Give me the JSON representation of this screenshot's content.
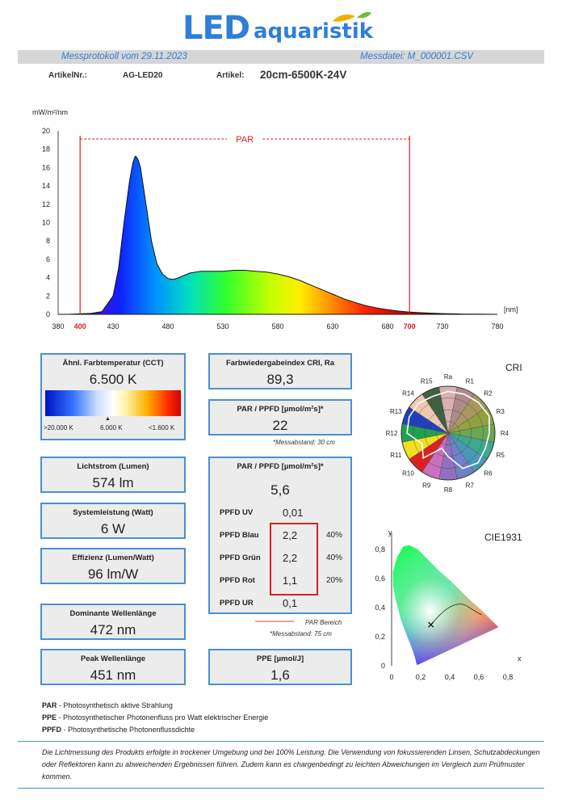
{
  "brand": {
    "logo_part1": "LED",
    "logo_part2": "aquaristik"
  },
  "header": {
    "protocol": "Messprotokoll vom  29.11.2023",
    "file": "Messdatei:  M_000001.CSV"
  },
  "article": {
    "nr_label": "ArtikelNr.:",
    "nr_value": "AG-LED20",
    "label": "Artikel:",
    "value": "20cm-6500K-24V"
  },
  "spectrum": {
    "y_unit": "mW/m²/nm",
    "x_unit": "[nm]",
    "par_label": "PAR",
    "y_ticks": [
      "0",
      "2",
      "4",
      "6",
      "8",
      "10",
      "12",
      "14",
      "16",
      "18",
      "20"
    ],
    "x_ticks": [
      "380",
      "400",
      "430",
      "480",
      "530",
      "580",
      "630",
      "680",
      "700",
      "730",
      "780"
    ]
  },
  "chart_data": {
    "type": "area",
    "title": "",
    "xlabel": "[nm]",
    "ylabel": "mW/m²/nm",
    "xlim": [
      380,
      780
    ],
    "ylim": [
      0,
      20
    ],
    "par_range": [
      400,
      700
    ],
    "x": [
      380,
      390,
      400,
      410,
      420,
      430,
      435,
      440,
      445,
      448,
      450,
      451,
      453,
      455,
      460,
      465,
      470,
      475,
      480,
      485,
      490,
      500,
      510,
      520,
      530,
      540,
      550,
      560,
      570,
      580,
      590,
      600,
      610,
      620,
      630,
      640,
      650,
      660,
      670,
      680,
      690,
      700,
      710,
      720,
      730,
      740,
      750,
      760,
      770,
      780
    ],
    "values": [
      0,
      0,
      0.05,
      0.1,
      0.3,
      2.0,
      5.0,
      10.0,
      14.5,
      16.5,
      17.2,
      17.2,
      16.8,
      16.0,
      12.0,
      8.0,
      5.5,
      4.4,
      3.9,
      3.8,
      4.0,
      4.5,
      4.7,
      4.7,
      4.7,
      4.8,
      4.8,
      4.7,
      4.6,
      4.4,
      4.1,
      3.7,
      3.2,
      2.7,
      2.2,
      1.7,
      1.3,
      0.95,
      0.7,
      0.5,
      0.35,
      0.25,
      0.18,
      0.12,
      0.08,
      0.05,
      0.03,
      0.02,
      0.01,
      0.0
    ]
  },
  "boxes": {
    "cct_title": "Ähnl. Farbtemperatur (CCT)",
    "cct_value": "6.500 K",
    "cct_scale_left": ">20.000 K",
    "cct_scale_mid": "6.000 K",
    "cct_scale_right": "<1.600 K",
    "cri_title": "Farbwiedergabeindex CRI, Ra",
    "cri_value": "89,3",
    "par30_title": "PAR / PPFD [µmol/m²s]*",
    "par30_value": "22",
    "par30_note": "*Messabstand: 30 cm",
    "lumen_title": "Lichtstrom (Lumen)",
    "lumen_value": "574 lm",
    "power_title": "Systemleistung (Watt)",
    "power_value": "6 W",
    "eff_title": "Effizienz (Lumen/Watt)",
    "eff_value": "96 lm/W",
    "dom_title": "Dominante Wellenlänge",
    "dom_value": "472 nm",
    "peak_title": "Peak Wellenlänge",
    "peak_value": "451 nm",
    "par75_title": "PAR / PPFD [µmol/m²s]*",
    "par75_value": "5,6",
    "ppfd": [
      {
        "label": "PPFD UV",
        "value": "0,01",
        "pct": ""
      },
      {
        "label": "PPFD Blau",
        "value": "2,2",
        "pct": "40%"
      },
      {
        "label": "PPFD Grün",
        "value": "2,2",
        "pct": "40%"
      },
      {
        "label": "PPFD Rot",
        "value": "1,1",
        "pct": "20%"
      },
      {
        "label": "PPFD UR",
        "value": "0,1",
        "pct": ""
      }
    ],
    "par_area_note": "PAR Bereich",
    "par75_note": "*Messabstand: 75 cm",
    "ppe_title": "PPE [µmol/J]",
    "ppe_value": "1,6"
  },
  "cri_chart": {
    "title": "CRI",
    "labels": [
      "Ra",
      "R1",
      "R2",
      "R3",
      "R4",
      "R5",
      "R6",
      "R7",
      "R8",
      "R9",
      "R10",
      "R11",
      "R12",
      "R13",
      "R14",
      "R15"
    ]
  },
  "cie_chart": {
    "title": "CIE1931",
    "y_label": "y",
    "x_label": "x",
    "y_ticks": [
      "0,8",
      "0,6",
      "0,4",
      "0,2",
      "0"
    ],
    "x_ticks": [
      "0",
      "0,2",
      "0,4",
      "0,6",
      "0,8"
    ]
  },
  "legend": [
    {
      "abbr": "PAR",
      "text": " - Photosynthetisch aktive Strahlung"
    },
    {
      "abbr": "PPE",
      "text": " - Photosynthetischer Photonenfluss pro Watt elektrischer Energie"
    },
    {
      "abbr": "PPFD",
      "text": " - Photosynthetische Photonenflussdichte"
    }
  ],
  "footer": "Die Lichtmessung des Produkts erfolgte  in trockener Umgebung und bei 100% Leistung. Die Verwendung von fokussierenden Linsen, Schutzabdeckungen oder Reflektoren kann zu abweichenden Ergebnissen führen. Zudem kann es chargenbedingt zu leichten Abweichungen im Vergleich zum Prüfmuster kommen.",
  "colors": {
    "accent": "#4a90d0",
    "par_red": "#d62020",
    "header_text": "#2f7fd8"
  }
}
